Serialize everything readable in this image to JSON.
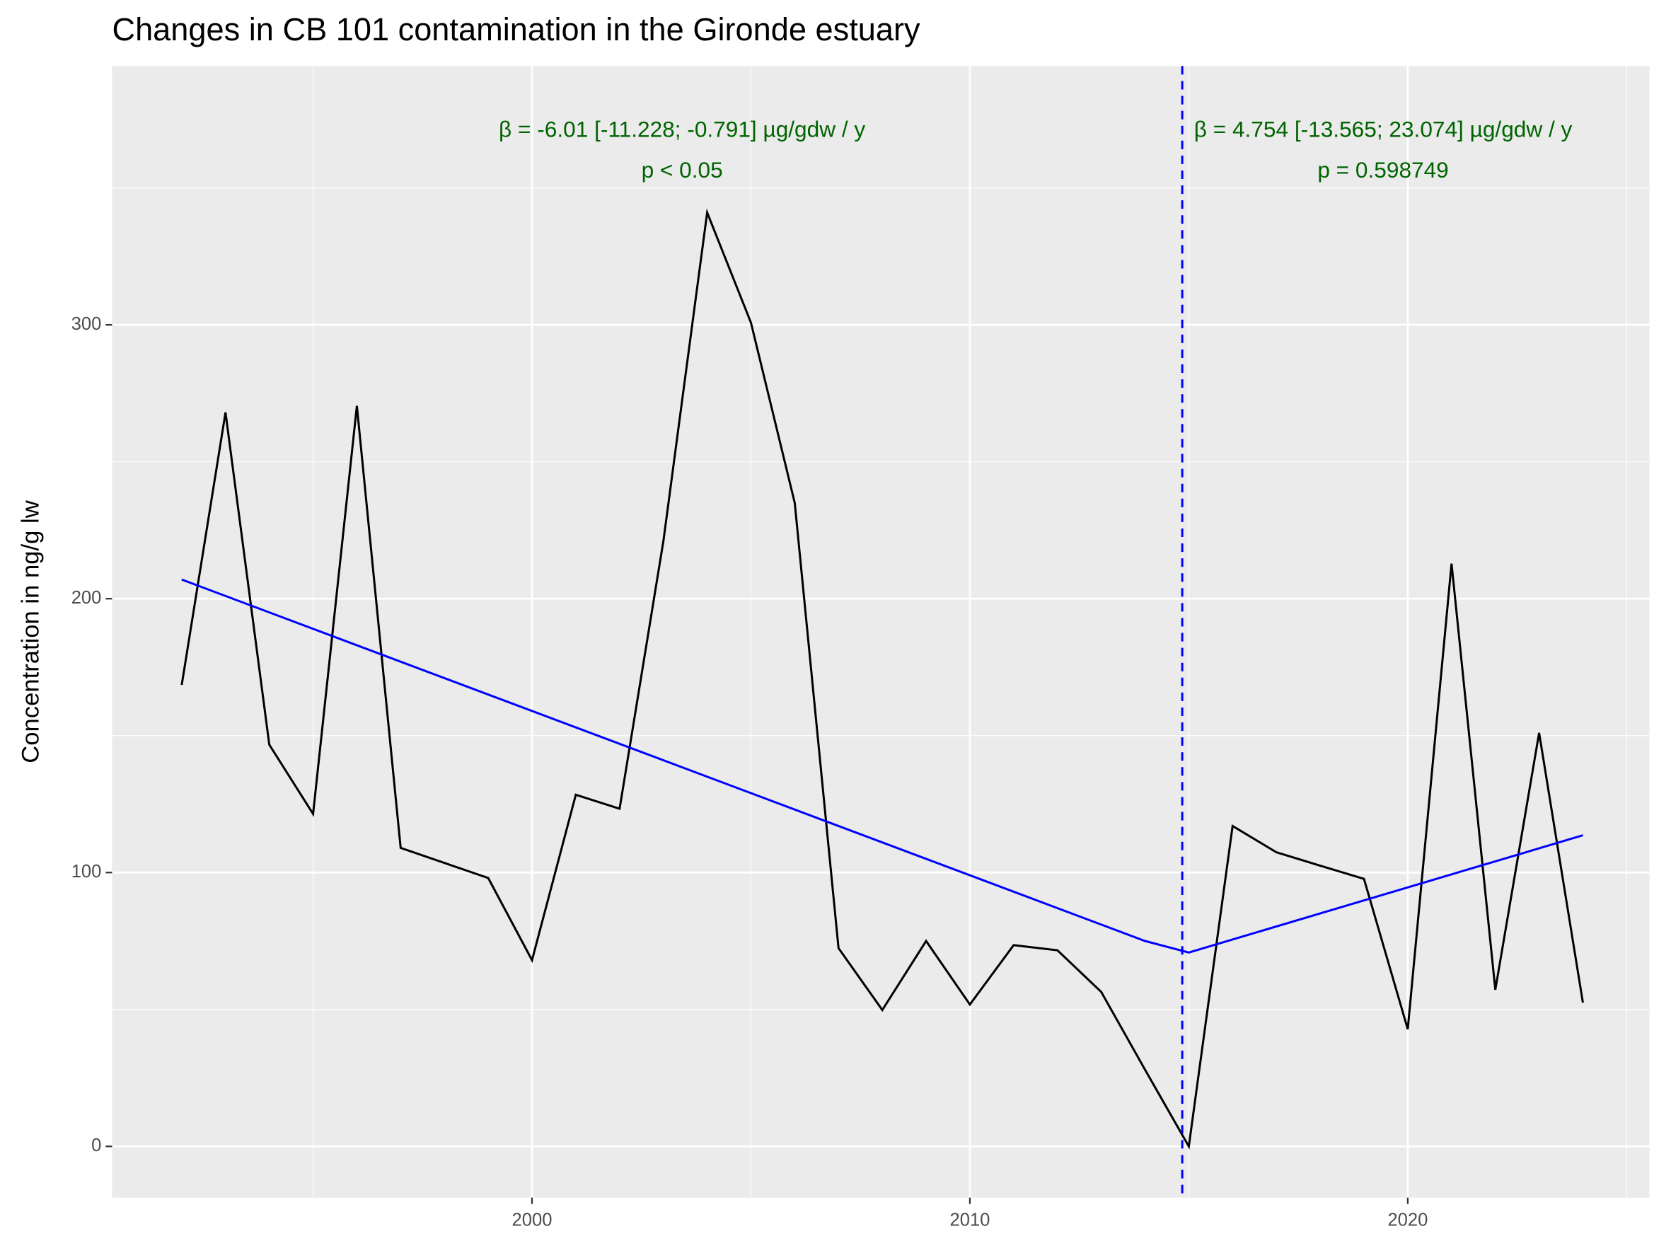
{
  "chart_data": {
    "type": "line",
    "title": "Changes in CB 101 contamination in the Gironde estuary",
    "y_label": "Concentration in ng/g lw",
    "xlim": [
      1990.41,
      2025.52
    ],
    "ylim": [
      -18.7,
      394.5
    ],
    "xticks": [
      2000,
      2010,
      2020
    ],
    "yticks": [
      0,
      100,
      200,
      300
    ],
    "xminor": [
      1995,
      2005,
      2015,
      2025
    ],
    "yminor": [
      50,
      150,
      250,
      350
    ],
    "grid": true,
    "series": [
      {
        "color": "#000000",
        "x": [
          1992,
          1993,
          1994,
          1995,
          1996,
          1997,
          1998,
          1999,
          2000,
          2001,
          2002,
          2003,
          2004,
          2005,
          2006,
          2007,
          2008,
          2009,
          2010,
          2011,
          2012,
          2013,
          2014,
          2015,
          2016,
          2017,
          2018,
          2019,
          2020,
          2021,
          2022,
          2023,
          2024
        ],
        "values": [
          168.5,
          268,
          146.7,
          121.4,
          270.4,
          109,
          103.5,
          98,
          68,
          128.4,
          123.3,
          221,
          341,
          300.8,
          235,
          72.4,
          49.8,
          75,
          51.8,
          73.5,
          71.6,
          56.4,
          28,
          0,
          117,
          107.4,
          102.5,
          97.7,
          42.8,
          212.8,
          57.2,
          151,
          52.5
        ]
      },
      {
        "color": "#0000ff",
        "x": [
          1992,
          2014,
          2015,
          2024
        ],
        "values": [
          207,
          75,
          70.8,
          113.6
        ]
      }
    ],
    "vline": {
      "x": 2014.85,
      "color": "#0000ff"
    },
    "annotations": [
      {
        "color": "#006400",
        "lines": [
          "β = -6.01 [-11.228; -0.791] µg/gdw / y",
          "p < 0.05"
        ]
      },
      {
        "color": "#006400",
        "lines": [
          "β = 4.754 [-13.565; 23.074] µg/gdw / y",
          "p = 0.598749"
        ]
      }
    ]
  }
}
